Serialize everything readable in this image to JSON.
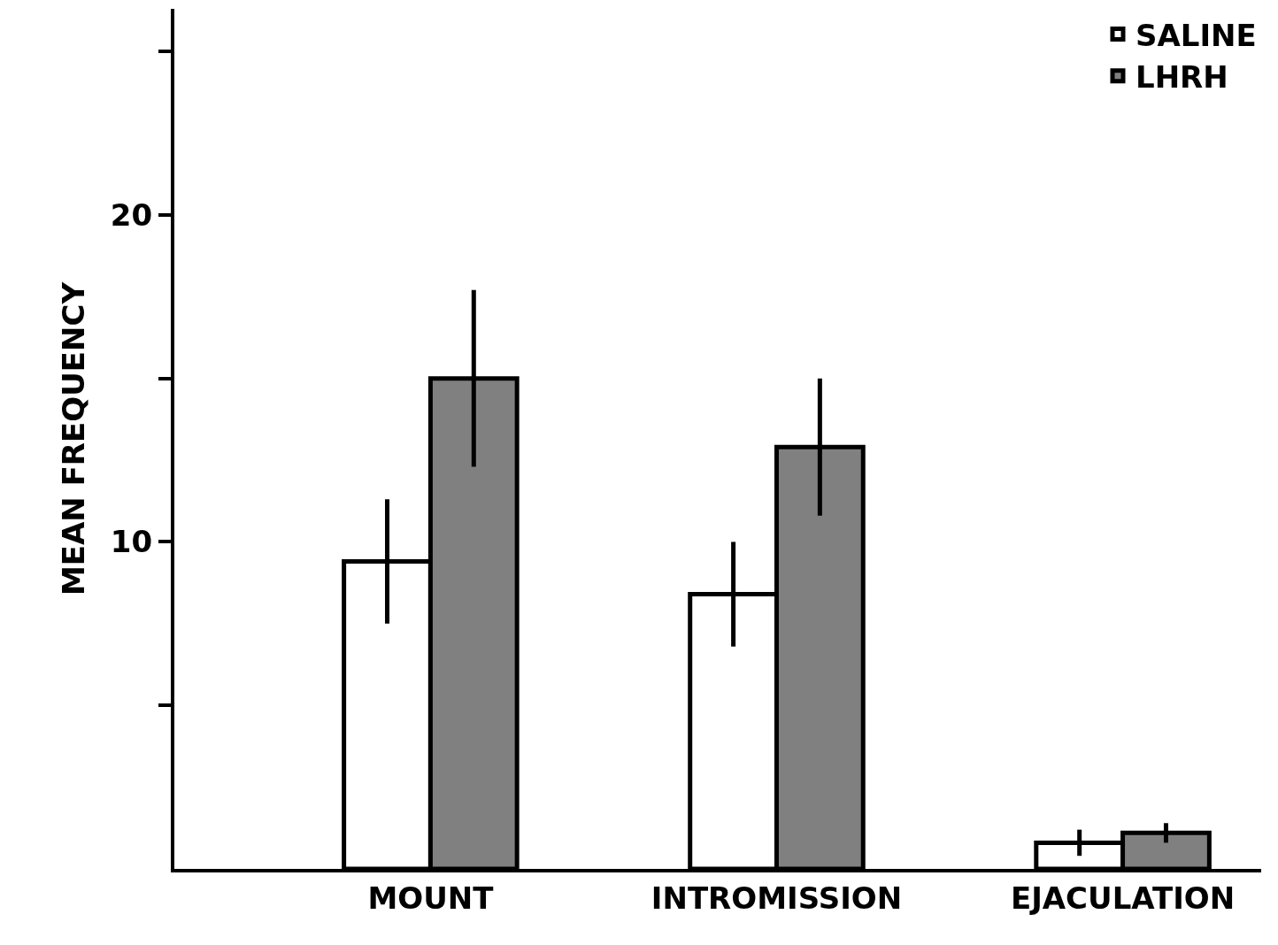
{
  "chart_data": {
    "type": "bar",
    "ylabel": "MEAN FREQUENCY",
    "categories": [
      "MOUNT",
      "INTROMISSION",
      "EJACULATION"
    ],
    "series": [
      {
        "name": "SALINE",
        "color": "#ffffff",
        "values": [
          9.4,
          8.4,
          0.8
        ],
        "errors": [
          1.9,
          1.6,
          0.4
        ]
      },
      {
        "name": "LHRH",
        "color": "#808080",
        "values": [
          15,
          12.9,
          1.1
        ],
        "errors": [
          2.7,
          2.1,
          0.3
        ]
      }
    ],
    "ylim": [
      0,
      26.3
    ],
    "yticks": [
      {
        "value": 5,
        "label": null
      },
      10,
      {
        "value": 15,
        "label": null
      },
      20,
      {
        "value": 25,
        "label": null
      }
    ],
    "grid": false,
    "legend": "top right"
  }
}
